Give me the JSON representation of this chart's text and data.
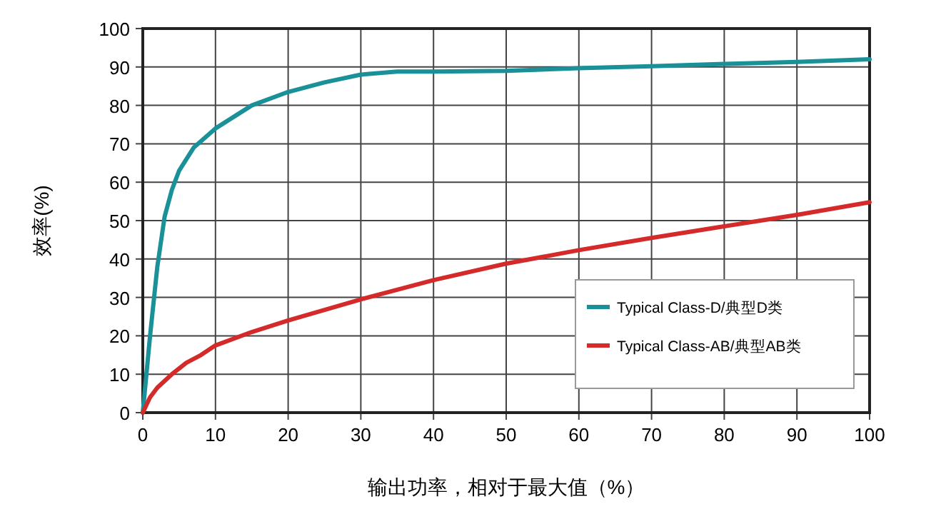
{
  "chart_data": {
    "type": "line",
    "xlabel": "输出功率，相对于最大值（%）",
    "ylabel": "效率(%)",
    "xlim": [
      0,
      100
    ],
    "xticks": [
      0,
      10,
      20,
      30,
      40,
      50,
      60,
      70,
      80,
      90,
      100
    ],
    "ylim": [
      0,
      100
    ],
    "yticks": [
      0,
      10,
      20,
      30,
      40,
      50,
      60,
      70,
      80,
      90,
      100
    ],
    "grid": true,
    "legend": "bottom right",
    "marker": "none",
    "line_style": "solid",
    "series": [
      {
        "name": "Typical Class-D/典型D类",
        "color": "#1a9099",
        "x": [
          0,
          1,
          2,
          3,
          4,
          5,
          7,
          10,
          15,
          20,
          25,
          30,
          35,
          40,
          50,
          60,
          70,
          80,
          90,
          100
        ],
        "values": [
          0,
          20,
          38,
          51,
          58,
          63,
          69,
          74,
          80,
          83.5,
          86,
          88,
          88.8,
          88.8,
          89,
          89.7,
          90.2,
          90.8,
          91.3,
          92
        ]
      },
      {
        "name": "Typical Class-AB/典型AB类",
        "color": "#d42a2a",
        "x": [
          0,
          1,
          2,
          4,
          6,
          8,
          10,
          15,
          20,
          30,
          40,
          50,
          60,
          70,
          80,
          90,
          100
        ],
        "values": [
          0,
          4,
          6.5,
          10,
          13,
          15,
          17.5,
          21,
          24,
          29.5,
          34.5,
          38.8,
          42.3,
          45.5,
          48.5,
          51.5,
          54.8
        ]
      }
    ]
  }
}
